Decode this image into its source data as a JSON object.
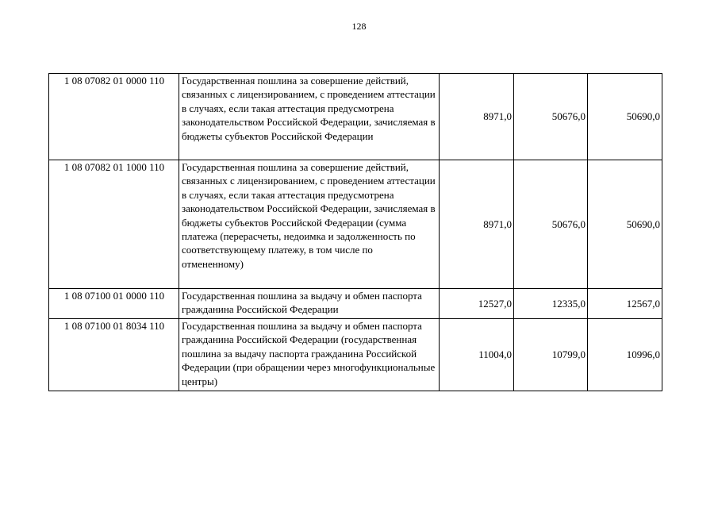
{
  "page_number": "128",
  "rows": [
    {
      "code": "1 08 07082 01 0000 110",
      "description": "Государственная пошлина за совершение действий, связанных с лицензированием, с проведением аттестации в случаях, если такая аттестация предусмотрена законодательством Российской Федерации, зачисляемая в бюджеты субъектов Российской Федерации",
      "v1": "8971,0",
      "v2": "50676,0",
      "v3": "50690,0"
    },
    {
      "code": "1 08 07082 01 1000 110",
      "description": "Государственная пошлина за совершение действий, связанных с лицензированием, с проведением аттестации в случаях, если такая аттестация предусмотрена законодательством Российской Федерации, зачисляемая в бюджеты субъектов Российской Федерации (сумма платежа (перерасчеты, недоимка и задолженность по соответствующему платежу, в том числе по отмененному)",
      "v1": "8971,0",
      "v2": "50676,0",
      "v3": "50690,0"
    },
    {
      "code": "1 08 07100 01 0000 110",
      "description": "Государственная пошлина за выдачу и обмен паспорта гражданина Российской Федерации",
      "v1": "12527,0",
      "v2": "12335,0",
      "v3": "12567,0"
    },
    {
      "code": "1 08 07100 01 8034 110",
      "description": "Государственная пошлина за выдачу и обмен паспорта гражданина Российской Федерации (государственная пошлина за выдачу паспорта гражданина Российской Федерации (при обращении через многофункциональные центры)",
      "v1": "11004,0",
      "v2": "10799,0",
      "v3": "10996,0"
    }
  ]
}
